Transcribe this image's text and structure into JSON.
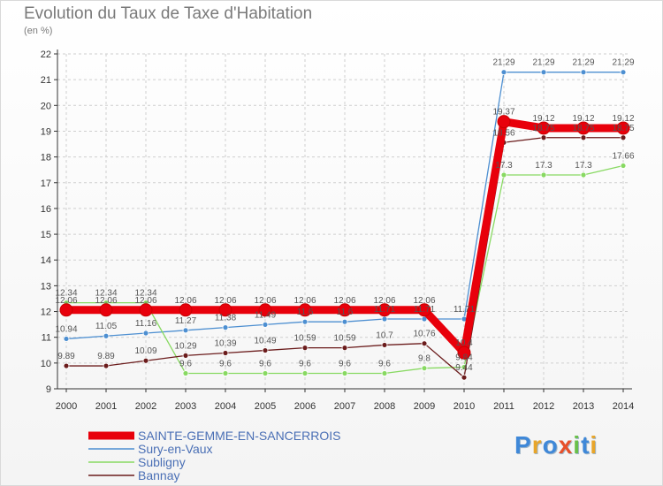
{
  "title": "Evolution du Taux de Taxe d'Habitation",
  "subtitle": "(en %)",
  "logo_text": "Proxiti",
  "chart_data": {
    "type": "line",
    "x": [
      2000,
      2001,
      2002,
      2003,
      2004,
      2005,
      2006,
      2007,
      2008,
      2009,
      2010,
      2011,
      2012,
      2013,
      2014
    ],
    "ylim": [
      9,
      22
    ],
    "yticks": [
      9,
      10,
      11,
      12,
      13,
      14,
      15,
      16,
      17,
      18,
      19,
      20,
      21,
      22
    ],
    "grid": true,
    "legend_position": "bottom-left",
    "series": [
      {
        "name": "SAINTE-GEMME-EN-SANCERROIS",
        "color": "#e8000b",
        "values": [
          12.06,
          12.06,
          12.06,
          12.06,
          12.06,
          12.06,
          12.06,
          12.06,
          12.06,
          12.06,
          10.4,
          19.37,
          19.12,
          19.12,
          19.12
        ],
        "labels": [
          "12.06",
          "12.06",
          "12.06",
          "12.06",
          "12.06",
          "12.06",
          "12.06",
          "12.06",
          "12.06",
          "12.06",
          "10.4",
          "19.37",
          "19.12",
          "19.12",
          "19.12"
        ]
      },
      {
        "name": "Sury-en-Vaux",
        "color": "#4d8fd1",
        "values": [
          10.94,
          11.05,
          11.16,
          11.27,
          11.38,
          11.49,
          11.6,
          11.6,
          11.71,
          11.71,
          11.71,
          21.29,
          21.29,
          21.29,
          21.29
        ],
        "labels": [
          "10.94",
          "11.05",
          "11.16",
          "11.27",
          "11.38",
          "11.49",
          "11.6",
          "11.6",
          "11.71",
          "11.71",
          "11.71",
          "21.29",
          "21.29",
          "21.29",
          "21.29"
        ]
      },
      {
        "name": "Subligny",
        "color": "#88d962",
        "values": [
          12.34,
          12.34,
          12.34,
          9.6,
          9.6,
          9.6,
          9.6,
          9.6,
          9.6,
          9.8,
          9.84,
          17.3,
          17.3,
          17.3,
          17.66
        ],
        "labels": [
          "12.34",
          "12.34",
          "12.34",
          "9.6",
          "9.6",
          "9.6",
          "9.6",
          "9.6",
          "9.6",
          "9.8",
          "9.84",
          "17.3",
          "17.3",
          "17.3",
          "17.66"
        ]
      },
      {
        "name": "Bannay",
        "color": "#6b1c1c",
        "values": [
          9.89,
          9.89,
          10.09,
          10.29,
          10.39,
          10.49,
          10.59,
          10.59,
          10.7,
          10.76,
          9.44,
          18.56,
          18.75,
          18.75,
          18.75
        ],
        "labels": [
          "9.89",
          "9.89",
          "10.09",
          "10.29",
          "10.39",
          "10.49",
          "10.59",
          "10.59",
          "10.7",
          "10.76",
          "9.44",
          "18.56",
          "18.75",
          "18.75",
          "18.75"
        ]
      }
    ]
  }
}
